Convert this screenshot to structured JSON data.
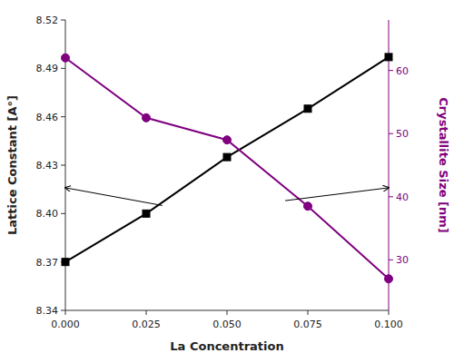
{
  "chart_data": {
    "type": "line",
    "x_label": "La Concentration",
    "y_label": "Lattice Constant [A°]",
    "y2_label": "Crystallite Size [nm]",
    "x": [
      0.0,
      0.025,
      0.05,
      0.075,
      0.1
    ],
    "series": [
      {
        "values": [
          8.37,
          8.4,
          8.435,
          8.465,
          8.497
        ],
        "color": "#000000",
        "marker": "square"
      },
      {
        "values": [
          62.0,
          52.5,
          49.0,
          38.5,
          27.0
        ],
        "color": "#800080",
        "marker": "circle",
        "axis": "y2"
      }
    ],
    "xlim": [
      0,
      0.1
    ],
    "xticks": [
      {
        "value": 0,
        "label": "0.000"
      },
      0.025,
      {
        "value": 0.05,
        "label": "0.050"
      },
      0.075,
      {
        "value": 0.1,
        "label": "0.100"
      }
    ],
    "ylim": [
      8.34,
      8.52
    ],
    "yticks": [
      8.34,
      8.37,
      {
        "value": 8.4,
        "label": "8.40"
      },
      8.43,
      8.46,
      8.49,
      8.52
    ],
    "y2lim": [
      22.0,
      68.0
    ],
    "y2ticks": [
      30,
      40,
      50,
      60
    ],
    "arrows": [
      {
        "xy": [
          0.0,
          8.416
        ],
        "xytext": [
          0.03,
          8.405
        ]
      },
      {
        "xy": [
          0.1,
          8.416
        ],
        "xytext": [
          0.068,
          8.408
        ]
      }
    ],
    "grid": false
  }
}
